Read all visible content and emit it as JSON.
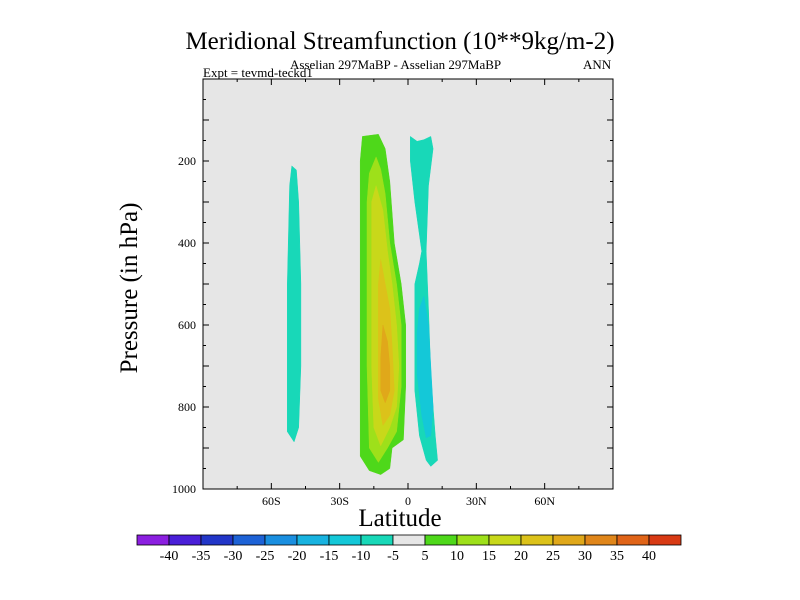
{
  "chart_data": {
    "type": "contour",
    "title": "Meridional Streamfunction (10**9kg/m-2)",
    "subtitle": "Asselian 297MaBP - Asselian 297MaBP",
    "season": "ANN",
    "experiment": "Expt = tevmd-teckd1",
    "xlabel": "Latitude",
    "ylabel": "Pressure (in hPa)",
    "xlim": [
      -90,
      90
    ],
    "ylim": [
      1000,
      0
    ],
    "x_ticks": [
      {
        "value": -60,
        "label": "60S"
      },
      {
        "value": -30,
        "label": "30S"
      },
      {
        "value": 0,
        "label": "0"
      },
      {
        "value": 30,
        "label": "30N"
      },
      {
        "value": 60,
        "label": "60N"
      }
    ],
    "y_ticks": [
      {
        "value": 200,
        "label": "200"
      },
      {
        "value": 400,
        "label": "400"
      },
      {
        "value": 600,
        "label": "600"
      },
      {
        "value": 800,
        "label": "800"
      },
      {
        "value": 1000,
        "label": "1000"
      }
    ],
    "background_color": "#e6e6e6",
    "contour_levels": [
      -40,
      -35,
      -30,
      -25,
      -20,
      -15,
      -10,
      -5,
      5,
      10,
      15,
      20,
      25,
      30,
      35,
      40
    ],
    "colorbar_colors": [
      "#8b1fe0",
      "#4a1fd8",
      "#2236c8",
      "#1d62d6",
      "#1a8fe0",
      "#18b3e0",
      "#14c8d8",
      "#18d8b8",
      "#e6e6e6",
      "#4ed81a",
      "#9ee01a",
      "#c8d81a",
      "#dcc21a",
      "#e0a81a",
      "#e0861a",
      "#e06418",
      "#d83a14"
    ],
    "regions": [
      {
        "name": "sh-negative-cell-lat-50",
        "fill": "#18d8b8",
        "points": [
          [
            -51,
            212
          ],
          [
            -49,
            222
          ],
          [
            -48,
            300
          ],
          [
            -47,
            500
          ],
          [
            -47,
            700
          ],
          [
            -48,
            850
          ],
          [
            -50,
            885
          ],
          [
            -53,
            860
          ],
          [
            -53,
            700
          ],
          [
            -53,
            500
          ],
          [
            -52,
            260
          ]
        ]
      },
      {
        "name": "positive-cell-10",
        "fill": "#4ed81a",
        "points": [
          [
            -20,
            140
          ],
          [
            -13,
            135
          ],
          [
            -10,
            170
          ],
          [
            -8,
            250
          ],
          [
            -6,
            400
          ],
          [
            -3,
            500
          ],
          [
            -1,
            600
          ],
          [
            -1,
            750
          ],
          [
            -2,
            880
          ],
          [
            -7,
            900
          ],
          [
            -8,
            950
          ],
          [
            -12,
            965
          ],
          [
            -17,
            955
          ],
          [
            -21,
            920
          ],
          [
            -21,
            800
          ],
          [
            -21,
            600
          ],
          [
            -21,
            400
          ],
          [
            -21,
            200
          ]
        ]
      },
      {
        "name": "positive-cell-15",
        "fill": "#9ee01a",
        "points": [
          [
            -17,
            230
          ],
          [
            -14,
            190
          ],
          [
            -12,
            220
          ],
          [
            -10,
            280
          ],
          [
            -8,
            400
          ],
          [
            -5,
            500
          ],
          [
            -3,
            600
          ],
          [
            -3,
            750
          ],
          [
            -5,
            860
          ],
          [
            -9,
            900
          ],
          [
            -13,
            935
          ],
          [
            -17,
            900
          ],
          [
            -18,
            700
          ],
          [
            -18,
            500
          ],
          [
            -18,
            300
          ]
        ]
      },
      {
        "name": "positive-cell-20",
        "fill": "#c8d81a",
        "points": [
          [
            -16,
            300
          ],
          [
            -14,
            260
          ],
          [
            -11,
            320
          ],
          [
            -9,
            420
          ],
          [
            -7,
            500
          ],
          [
            -5,
            600
          ],
          [
            -4,
            700
          ],
          [
            -5,
            800
          ],
          [
            -8,
            850
          ],
          [
            -12,
            895
          ],
          [
            -15,
            850
          ],
          [
            -16,
            700
          ],
          [
            -16,
            500
          ]
        ]
      },
      {
        "name": "positive-cell-25",
        "fill": "#dcc21a",
        "points": [
          [
            -12,
            440
          ],
          [
            -10,
            500
          ],
          [
            -8,
            560
          ],
          [
            -7,
            650
          ],
          [
            -6,
            760
          ],
          [
            -8,
            820
          ],
          [
            -11,
            845
          ],
          [
            -13,
            780
          ],
          [
            -13,
            600
          ],
          [
            -13,
            500
          ]
        ]
      },
      {
        "name": "positive-cell-30",
        "fill": "#e0a81a",
        "points": [
          [
            -11,
            600
          ],
          [
            -9,
            640
          ],
          [
            -8,
            700
          ],
          [
            -8,
            760
          ],
          [
            -10,
            790
          ],
          [
            -12,
            760
          ],
          [
            -12,
            680
          ]
        ]
      },
      {
        "name": "nh-negative-cell-5",
        "fill": "#18d8b8",
        "points": [
          [
            1,
            140
          ],
          [
            4,
            152
          ],
          [
            7,
            148
          ],
          [
            10,
            140
          ],
          [
            11,
            170
          ],
          [
            9,
            260
          ],
          [
            8,
            420
          ],
          [
            9,
            560
          ],
          [
            10,
            720
          ],
          [
            11,
            800
          ],
          [
            12,
            870
          ],
          [
            13,
            930
          ],
          [
            10,
            945
          ],
          [
            8,
            930
          ],
          [
            5,
            870
          ],
          [
            3,
            760
          ],
          [
            3,
            600
          ],
          [
            3,
            500
          ],
          [
            5,
            450
          ],
          [
            6,
            420
          ],
          [
            5,
            380
          ],
          [
            3,
            300
          ],
          [
            1,
            200
          ]
        ]
      },
      {
        "name": "nh-negative-cell-10",
        "fill": "#14c8d8",
        "points": [
          [
            5,
            560
          ],
          [
            7,
            530
          ],
          [
            9,
            600
          ],
          [
            10,
            700
          ],
          [
            11,
            800
          ],
          [
            10,
            870
          ],
          [
            8,
            875
          ],
          [
            6,
            820
          ],
          [
            4,
            720
          ],
          [
            4,
            620
          ]
        ]
      }
    ]
  }
}
